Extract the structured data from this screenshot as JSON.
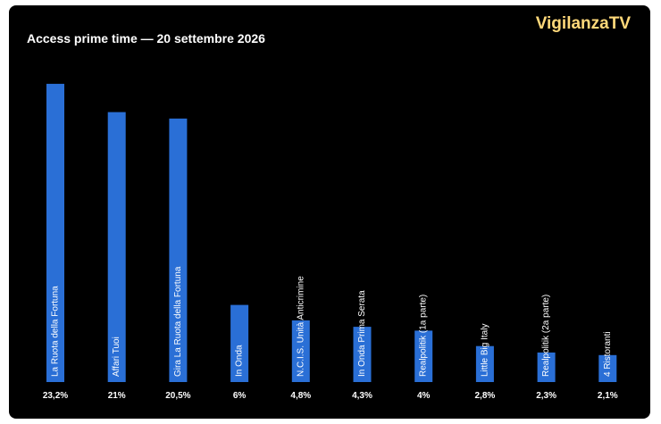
{
  "brand": "VigilanzaTV",
  "colors": {
    "background": "#000000",
    "bar": "#2a6fd6",
    "text": "#ffffff",
    "brand": "#ffd97a"
  },
  "chart_data": {
    "type": "bar",
    "title": "Access prime time — 20 settembre 2026",
    "xlabel": "",
    "ylabel": "",
    "grid": false,
    "legend": "none",
    "ylim": [
      0,
      25
    ],
    "categories": [
      "La Ruota della Fortuna",
      "Affari Tuoi",
      "Gira La Ruota della Fortuna",
      "In Onda",
      "N.C.I.S. Unità Anticrimine",
      "In Onda Prima Serata",
      "Realpolitik (1a parte)",
      "Little Big Italy",
      "Realpolitik (2a parte)",
      "4 Ristoranti"
    ],
    "values": [
      23.2,
      21,
      20.5,
      6,
      4.8,
      4.3,
      4,
      2.8,
      2.3,
      2.1
    ],
    "value_labels": [
      "23,2%",
      "21%",
      "20,5%",
      "6%",
      "4,8%",
      "4,3%",
      "4%",
      "2,8%",
      "2,3%",
      "2,1%"
    ]
  }
}
